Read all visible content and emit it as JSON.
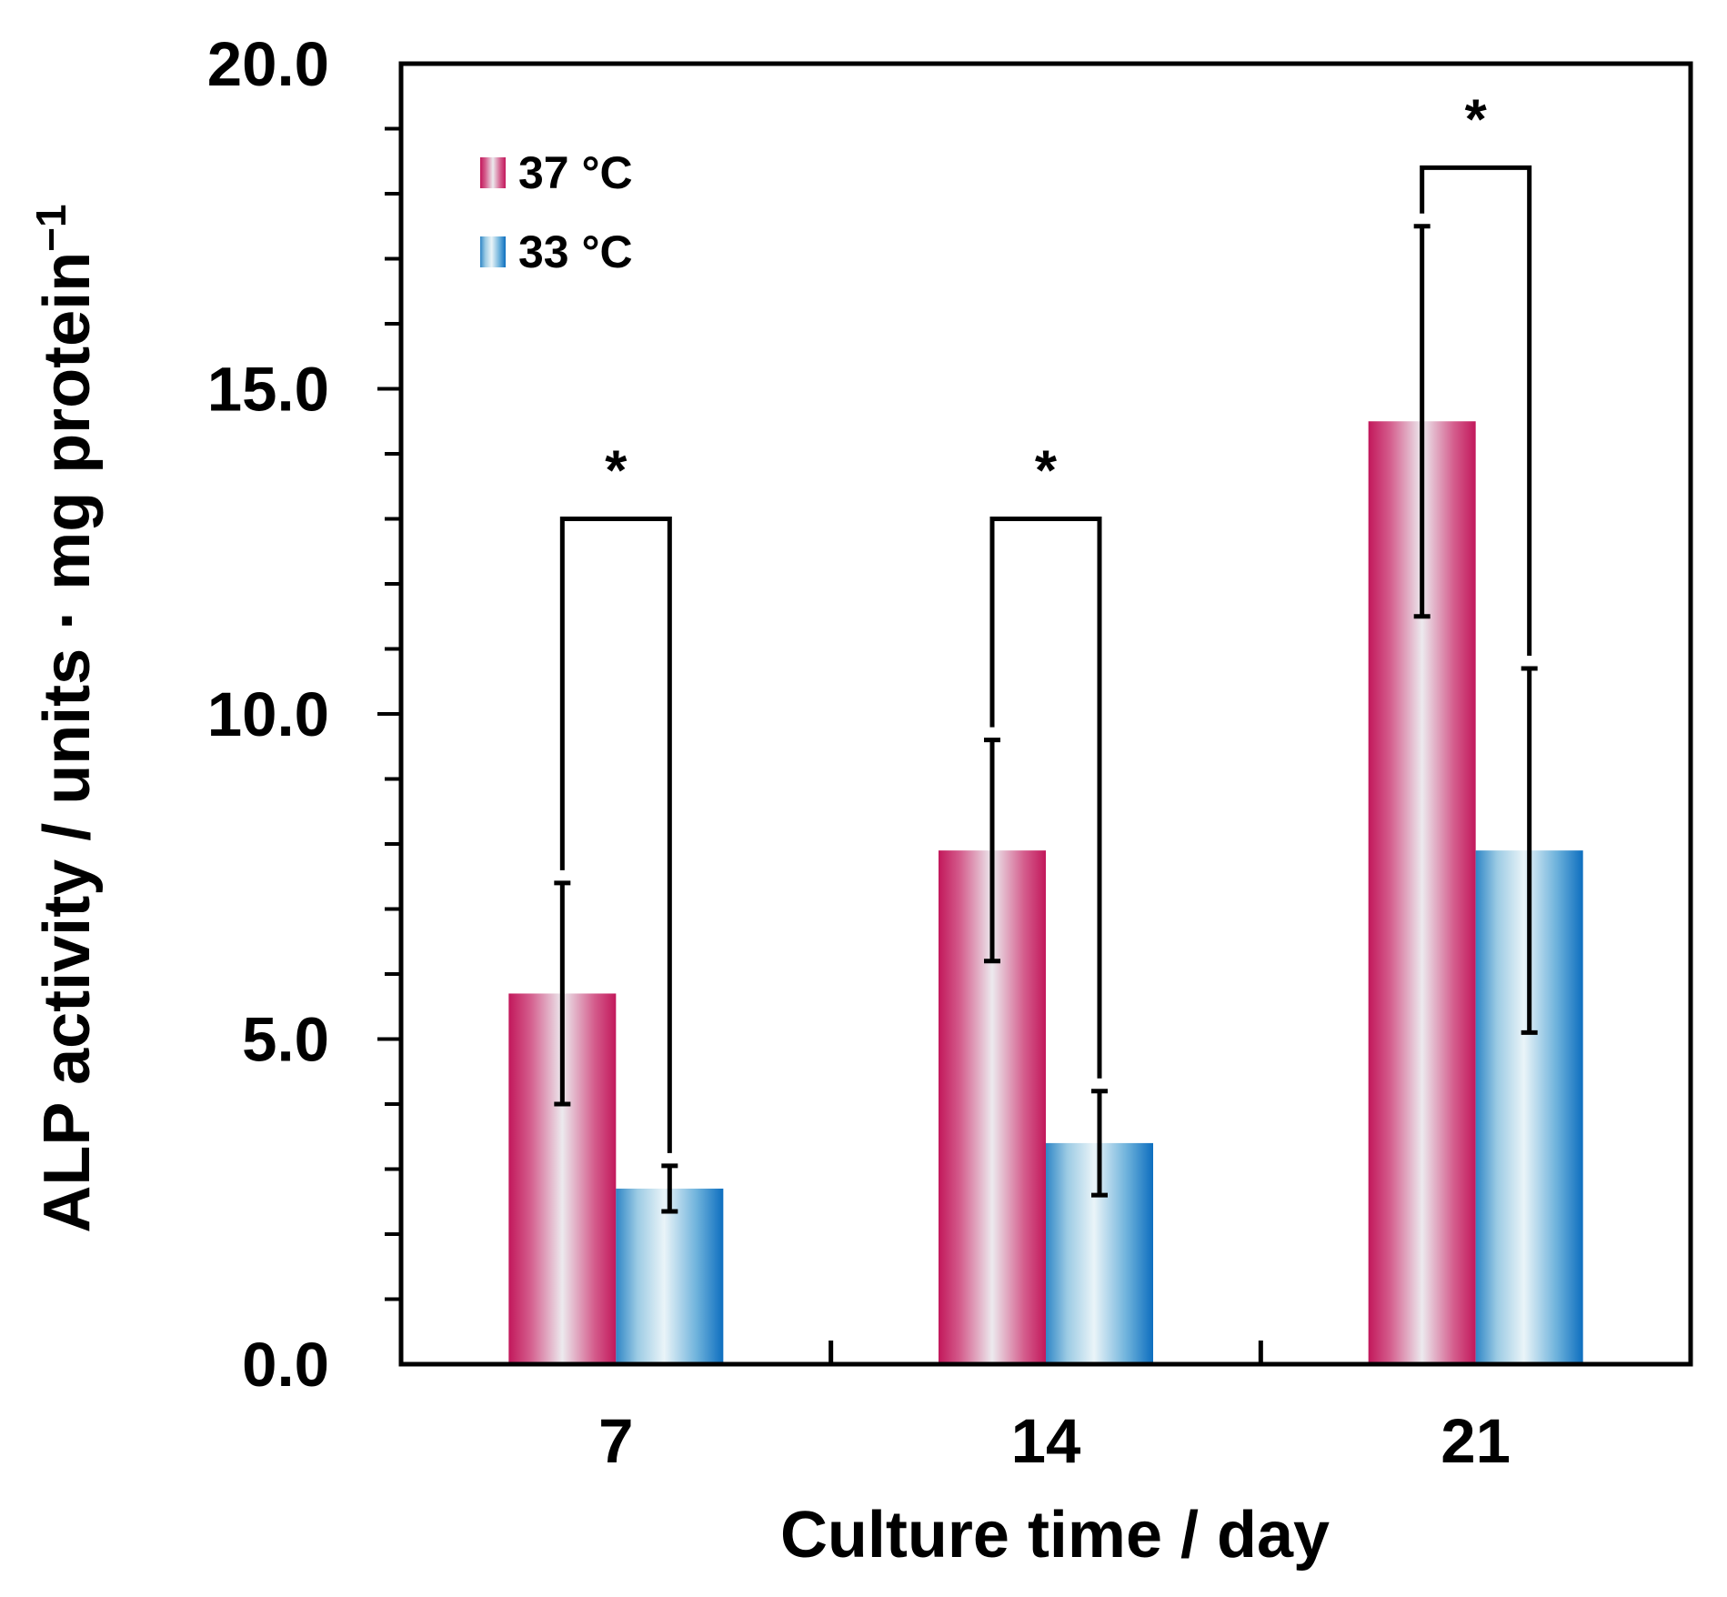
{
  "chart_data": {
    "type": "bar",
    "categories": [
      "7",
      "14",
      "21"
    ],
    "series": [
      {
        "name": "37 °C",
        "color": "#C2185B",
        "values": [
          5.7,
          7.9,
          14.5
        ],
        "errors": [
          1.7,
          1.7,
          3.0
        ]
      },
      {
        "name": "33 °C",
        "color": "#0D6EBF",
        "values": [
          2.7,
          3.4,
          7.9
        ],
        "errors": [
          0.35,
          0.8,
          2.8
        ]
      }
    ],
    "ylim": [
      0,
      20
    ],
    "yticks": [
      "0.0",
      "5.0",
      "10.0",
      "15.0",
      "20.0"
    ],
    "ytick_values": [
      0,
      5,
      10,
      15,
      20
    ],
    "y_minor_step": 1,
    "xlabel": "Culture time / day",
    "ylabel_main": "ALP activity / units · mg protein",
    "ylabel_superscript": "−1",
    "significance": [
      {
        "category": "7",
        "bracket_y": 13.0,
        "label": "*"
      },
      {
        "category": "14",
        "bracket_y": 13.0,
        "label": "*"
      },
      {
        "category": "21",
        "bracket_y": 18.4,
        "label": "*"
      }
    ],
    "legend_position": "top-left"
  }
}
